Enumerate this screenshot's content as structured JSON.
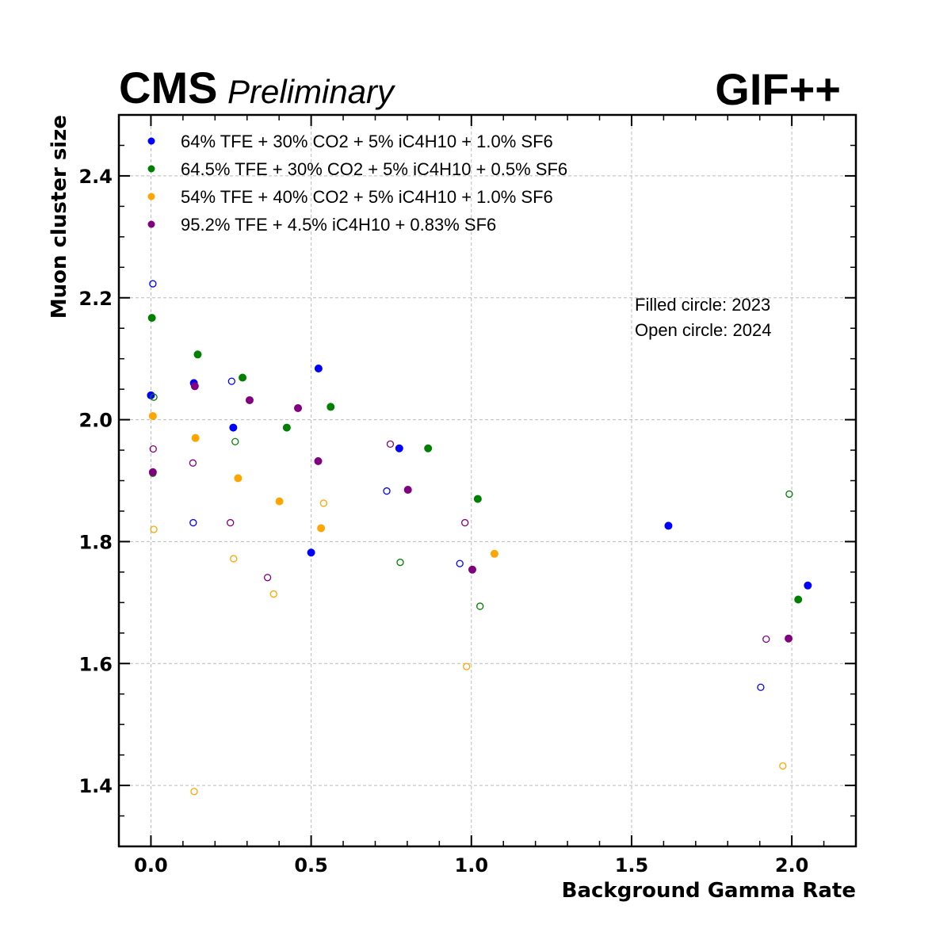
{
  "header": {
    "experiment": "CMS",
    "status": "Preliminary",
    "facility": "GIF++"
  },
  "annotations": {
    "filled": "Filled circle: 2023",
    "open": "Open circle: 2024"
  },
  "chart_data": {
    "type": "scatter",
    "xlabel": "Background Gamma Rate",
    "ylabel": "Muon cluster size",
    "xlim": [
      -0.1,
      2.2
    ],
    "ylim": [
      1.3,
      2.5
    ],
    "xticks": [
      0.0,
      0.5,
      1.0,
      1.5,
      2.0
    ],
    "xtick_labels": [
      "0.0",
      "0.5",
      "1.0",
      "1.5",
      "2.0"
    ],
    "yticks": [
      1.4,
      1.6,
      1.8,
      2.0,
      2.2,
      2.4
    ],
    "ytick_labels": [
      "1.4",
      "1.6",
      "1.8",
      "2.0",
      "2.2",
      "2.4"
    ],
    "grid": true,
    "legend_position": "top-left",
    "series": [
      {
        "name": "64% TFE + 30% CO2 + 5% iC4H10 + 1.0% SF6",
        "color": "#0000ff",
        "filled": [
          [
            0.0,
            2.04
          ],
          [
            0.134,
            2.06
          ],
          [
            0.257,
            1.987
          ],
          [
            0.5,
            1.782
          ],
          [
            0.523,
            2.084
          ],
          [
            0.775,
            1.953
          ],
          [
            1.615,
            1.826
          ],
          [
            2.05,
            1.728
          ]
        ],
        "open": [
          [
            0.006,
            2.223
          ],
          [
            0.132,
            1.831
          ],
          [
            0.252,
            2.063
          ],
          [
            0.736,
            1.883
          ],
          [
            0.964,
            1.764
          ],
          [
            1.903,
            1.561
          ]
        ]
      },
      {
        "name": "64.5% TFE + 30% CO2 + 5% iC4H10 + 0.5% SF6",
        "color": "#008000",
        "filled": [
          [
            0.003,
            2.167
          ],
          [
            0.146,
            2.107
          ],
          [
            0.286,
            2.069
          ],
          [
            0.424,
            1.987
          ],
          [
            0.561,
            2.021
          ],
          [
            0.865,
            1.953
          ],
          [
            1.02,
            1.87
          ],
          [
            2.02,
            1.705
          ]
        ],
        "open": [
          [
            0.009,
            2.037
          ],
          [
            0.006,
            1.912
          ],
          [
            0.263,
            1.964
          ],
          [
            0.778,
            1.766
          ],
          [
            1.027,
            1.694
          ],
          [
            1.992,
            1.878
          ]
        ]
      },
      {
        "name": "54% TFE + 40% CO2 + 5% iC4H10 + 1.0% SF6",
        "color": "#ffa500",
        "filled": [
          [
            0.006,
            2.006
          ],
          [
            0.139,
            1.97
          ],
          [
            0.272,
            1.904
          ],
          [
            0.401,
            1.866
          ],
          [
            0.531,
            1.822
          ],
          [
            1.072,
            1.78
          ]
        ],
        "open": [
          [
            0.009,
            1.82
          ],
          [
            0.135,
            1.39
          ],
          [
            0.258,
            1.772
          ],
          [
            0.383,
            1.714
          ],
          [
            0.539,
            1.863
          ],
          [
            0.985,
            1.595
          ],
          [
            1.972,
            1.432
          ]
        ]
      },
      {
        "name": "95.2% TFE + 4.5% iC4H10 + 0.83% SF6",
        "color": "#800080",
        "filled": [
          [
            0.006,
            1.914
          ],
          [
            0.137,
            2.055
          ],
          [
            0.308,
            2.032
          ],
          [
            0.459,
            2.019
          ],
          [
            0.522,
            1.932
          ],
          [
            0.802,
            1.885
          ],
          [
            1.003,
            1.754
          ],
          [
            1.99,
            1.641
          ]
        ],
        "open": [
          [
            0.007,
            1.952
          ],
          [
            0.131,
            1.929
          ],
          [
            0.248,
            1.831
          ],
          [
            0.364,
            1.741
          ],
          [
            0.747,
            1.96
          ],
          [
            0.98,
            1.831
          ],
          [
            1.92,
            1.64
          ]
        ]
      }
    ]
  }
}
